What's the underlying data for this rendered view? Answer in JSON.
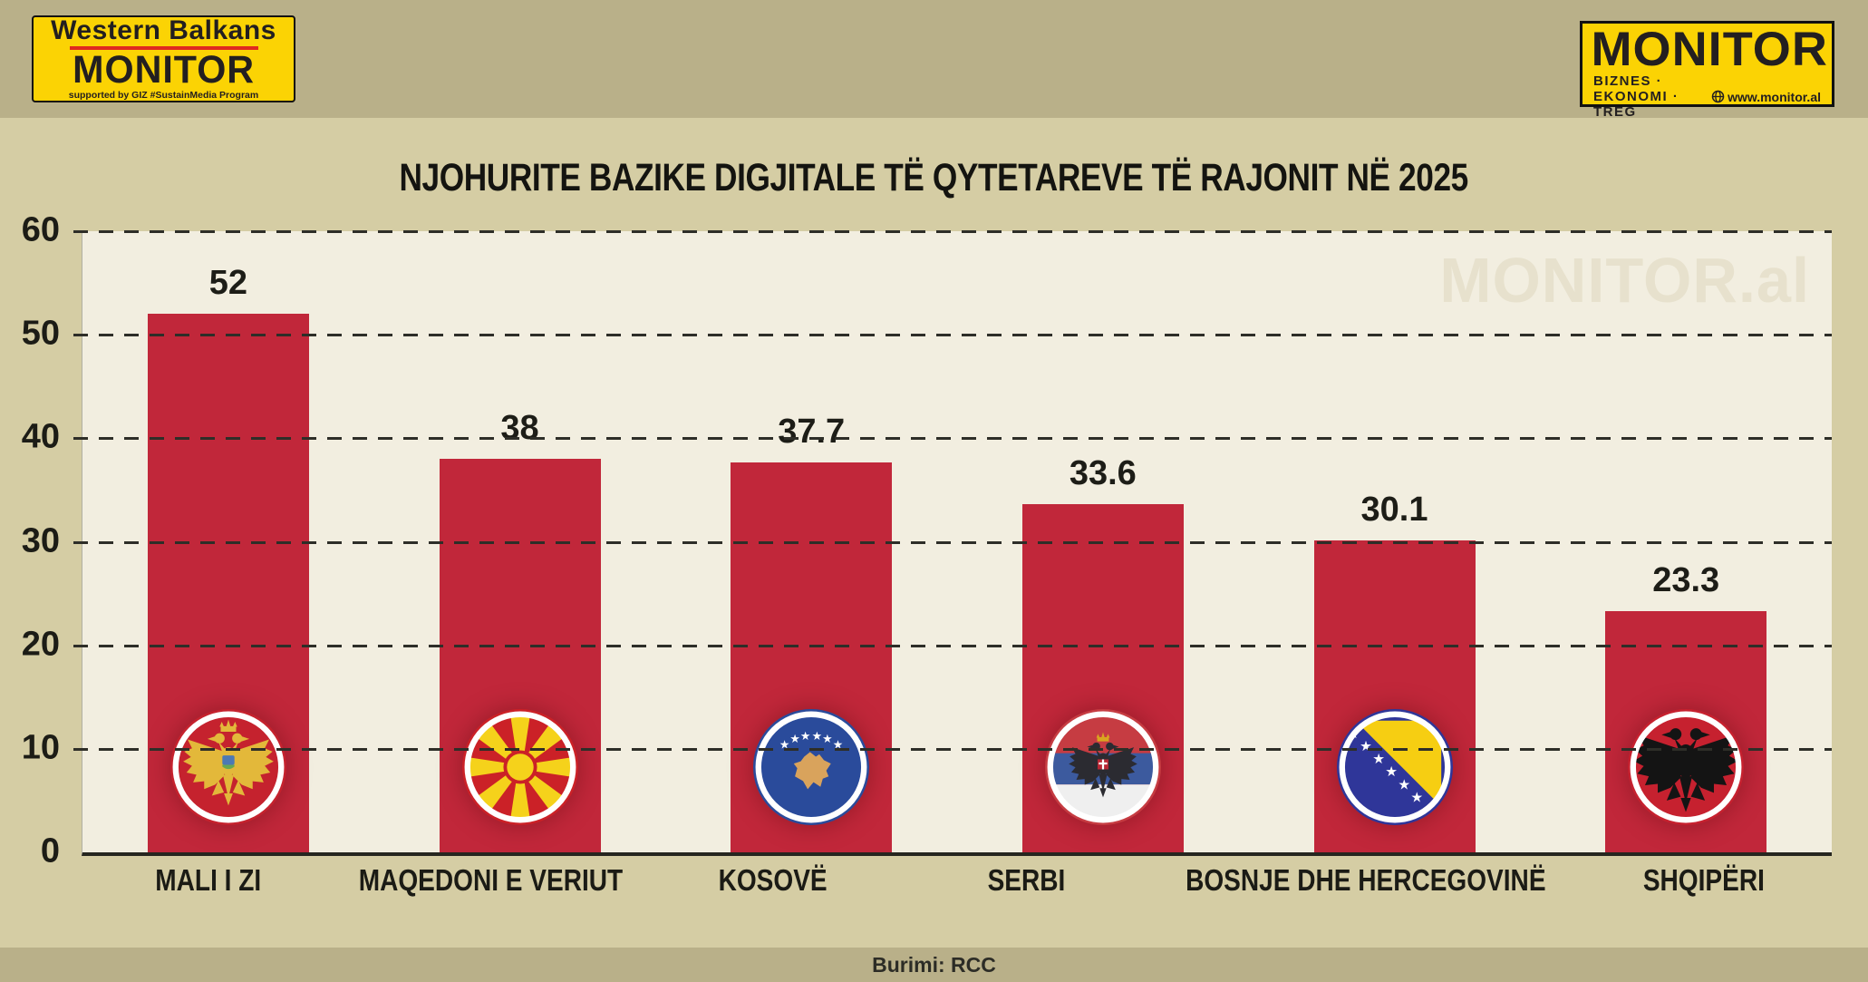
{
  "header": {
    "left_logo": {
      "top": "Western Balkans",
      "main": "MONITOR",
      "sub": "supported by GIZ #SustainMedia Program"
    },
    "right_logo": {
      "main": "MONITOR",
      "tagline": "BIZNES · EKONOMI · TREG",
      "website": "www.monitor.al"
    }
  },
  "title": "NJOHURITE BAZIKE DIGJITALE TË QYTETAREVE TË RAJONIT NË 2025",
  "watermark": "MONITOR.al",
  "footer": {
    "source": "Burimi: RCC"
  },
  "colors": {
    "page_bg": "#d5cda4",
    "strip_bg": "#b9b089",
    "plot_bg": "#f2eee0",
    "bar": "#c1273a",
    "watermark": "#e7e1cd",
    "logo_yellow": "#fbd304",
    "logo_red": "#e02a1e",
    "logo_text": "#231f20"
  },
  "chart_data": {
    "type": "bar",
    "title": "NJOHURITE BAZIKE DIGJITALE TË QYTETAREVE TË RAJONIT NË 2025",
    "categories": [
      "MALI I ZI",
      "MAQEDONI E VERIUT",
      "KOSOVË",
      "SERBI",
      "BOSNJE DHE HERCEGOVINË",
      "SHQIPËRI"
    ],
    "values": [
      52,
      38,
      37.7,
      33.6,
      30.1,
      23.3
    ],
    "flags": [
      "montenegro-flag",
      "north-macedonia-flag",
      "kosovo-flag",
      "serbia-flag",
      "bosnia-herzegovina-flag",
      "albania-flag"
    ],
    "xlabel": "",
    "ylabel": "",
    "ylim": [
      0,
      60
    ],
    "ytick_step": 10,
    "grid": true,
    "legend": false,
    "bar_color": "#c1273a",
    "source": "Burimi: RCC"
  }
}
